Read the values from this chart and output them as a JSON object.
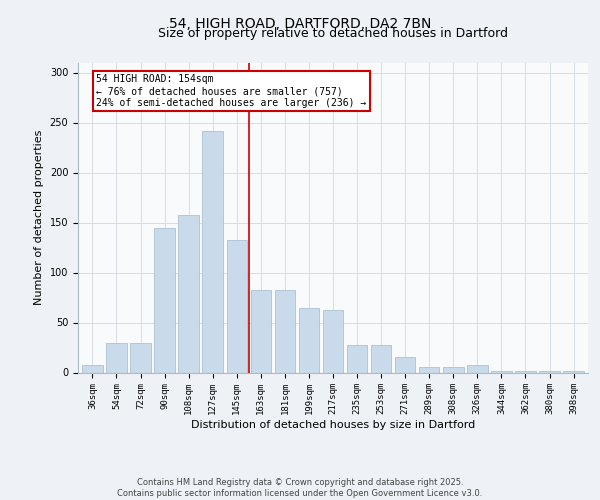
{
  "title1": "54, HIGH ROAD, DARTFORD, DA2 7BN",
  "title2": "Size of property relative to detached houses in Dartford",
  "xlabel": "Distribution of detached houses by size in Dartford",
  "ylabel": "Number of detached properties",
  "categories": [
    "36sqm",
    "54sqm",
    "72sqm",
    "90sqm",
    "108sqm",
    "127sqm",
    "145sqm",
    "163sqm",
    "181sqm",
    "199sqm",
    "217sqm",
    "235sqm",
    "253sqm",
    "271sqm",
    "289sqm",
    "308sqm",
    "326sqm",
    "344sqm",
    "362sqm",
    "380sqm",
    "398sqm"
  ],
  "values": [
    8,
    30,
    30,
    145,
    158,
    242,
    133,
    83,
    83,
    65,
    63,
    28,
    28,
    16,
    6,
    6,
    8,
    2,
    2,
    2,
    2
  ],
  "bar_color": "#c9daea",
  "bar_edge_color": "#a0bcd0",
  "vline_color": "#cc0000",
  "annotation_text": "54 HIGH ROAD: 154sqm\n← 76% of detached houses are smaller (757)\n24% of semi-detached houses are larger (236) →",
  "annotation_box_color": "#cc0000",
  "ylim": [
    0,
    310
  ],
  "yticks": [
    0,
    50,
    100,
    150,
    200,
    250,
    300
  ],
  "footer": "Contains HM Land Registry data © Crown copyright and database right 2025.\nContains public sector information licensed under the Open Government Licence v3.0.",
  "bg_color": "#eef2f6",
  "plot_bg_color": "#f8fafc",
  "grid_color": "#d0d8e0",
  "title_fontsize": 10,
  "subtitle_fontsize": 9,
  "tick_fontsize": 6.5,
  "ylabel_fontsize": 8,
  "xlabel_fontsize": 8,
  "annotation_fontsize": 7,
  "footer_fontsize": 6
}
